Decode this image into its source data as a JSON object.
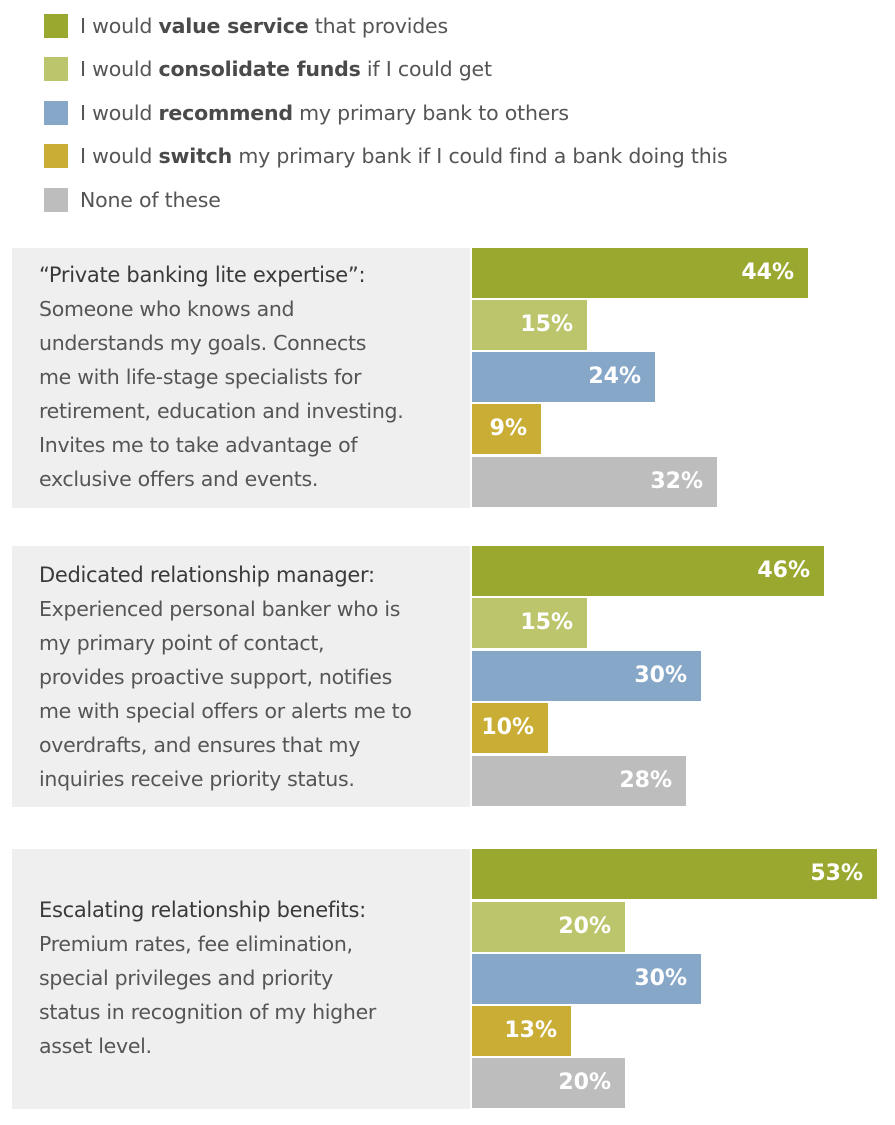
{
  "colors": {
    "value": "#9aa82f",
    "consolidate": "#bcc56c",
    "recommend": "#87a7c9",
    "switch": "#c9ad34",
    "none": "#bdbdbd",
    "panel_bg": "#efefef"
  },
  "legend": [
    {
      "pre": "I would ",
      "bold": "value service",
      "post": " that provides",
      "color": "#9aa82f"
    },
    {
      "pre": "I would ",
      "bold": "consolidate funds",
      "post": " if I could get",
      "color": "#bcc56c"
    },
    {
      "pre": "I would ",
      "bold": "recommend",
      "post": " my primary bank to others",
      "color": "#87a7c9"
    },
    {
      "pre": "I would ",
      "bold": "switch",
      "post": " my primary bank if I could find a bank doing this",
      "color": "#c9ad34"
    },
    {
      "pre": "None of these",
      "bold": "",
      "post": "",
      "color": "#bdbdbd"
    }
  ],
  "panels": [
    {
      "title": "“Private banking lite expertise”:",
      "lines": [
        "Someone who knows and",
        "understands my goals. Connects",
        "me with life-stage specialists for",
        "retirement, education and investing.",
        "Invites me to take advantage of",
        "exclusive offers and events."
      ]
    },
    {
      "title": "Dedicated relationship manager:",
      "lines": [
        "Experienced personal banker who is",
        "my primary point of contact,",
        "provides proactive support, notifies",
        "me with special offers or alerts me to",
        "overdrafts, and ensures that my",
        "inquiries receive priority status."
      ]
    },
    {
      "title": "Escalating relationship benefits:",
      "lines": [
        "Premium rates, fee elimination,",
        "special privileges and priority",
        "status in recognition of my higher",
        "asset level."
      ]
    }
  ],
  "chart_data": {
    "type": "bar",
    "orientation": "horizontal",
    "categories": [
      "“Private banking lite expertise”",
      "Dedicated relationship manager",
      "Escalating relationship benefits"
    ],
    "series": [
      {
        "name": "I would value service that provides",
        "color": "#9aa82f",
        "values": [
          44,
          46,
          53
        ],
        "labels": [
          "44%",
          "46%",
          "53%"
        ]
      },
      {
        "name": "I would consolidate funds if I could get",
        "color": "#bcc56c",
        "values": [
          15,
          15,
          20
        ],
        "labels": [
          "15%",
          "15%",
          "20%"
        ]
      },
      {
        "name": "I would recommend my primary bank to others",
        "color": "#87a7c9",
        "values": [
          24,
          30,
          30
        ],
        "labels": [
          "24%",
          "30%",
          "30%"
        ]
      },
      {
        "name": "I would switch my primary bank if I could find a bank doing this",
        "color": "#c9ad34",
        "values": [
          9,
          10,
          13
        ],
        "labels": [
          "9%",
          "10%",
          "13%"
        ]
      },
      {
        "name": "None of these",
        "color": "#bdbdbd",
        "values": [
          32,
          28,
          20
        ],
        "labels": [
          "32%",
          "28%",
          "20%"
        ]
      }
    ],
    "xlim": [
      0,
      53
    ],
    "legend_position": "top",
    "grid": false
  }
}
